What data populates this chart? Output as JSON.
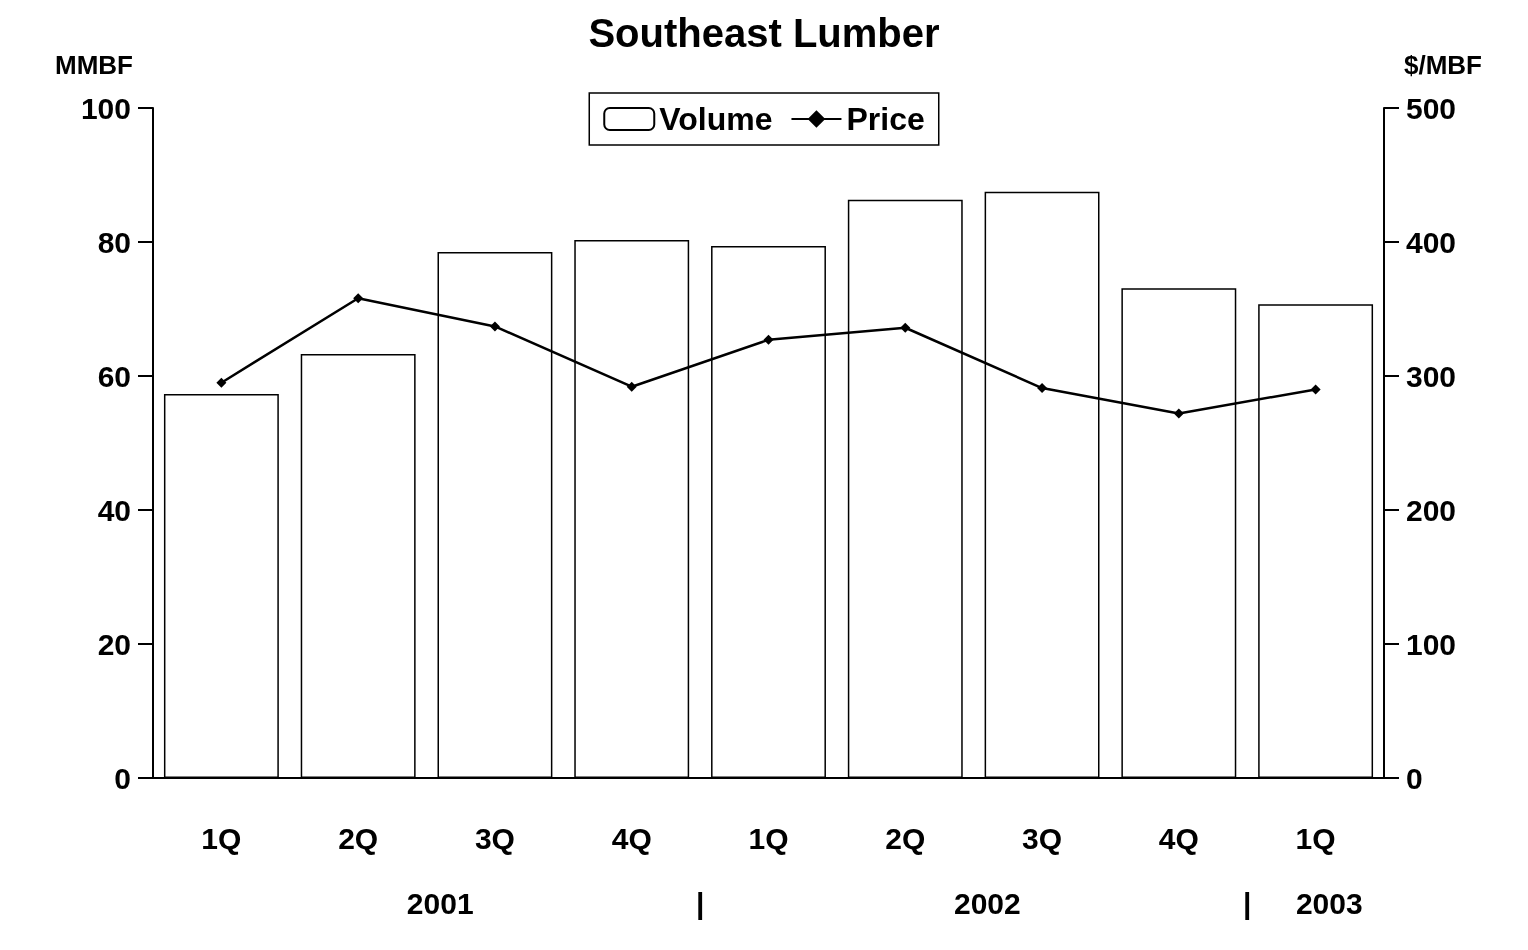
{
  "chart_data": {
    "type": "bar",
    "title": "Southeast Lumber",
    "ylabel": "MMBF",
    "y2label": "$/MBF",
    "categories": [
      "1Q",
      "2Q",
      "3Q",
      "4Q",
      "1Q",
      "2Q",
      "3Q",
      "4Q",
      "1Q"
    ],
    "series": [
      {
        "name": "Volume",
        "color": "#ffffff",
        "values": [
          57.3,
          63.3,
          78.5,
          80.3,
          79.4,
          86.3,
          87.5,
          73.1,
          70.7
        ]
      },
      {
        "name": "Price",
        "type": "line",
        "axis": "y2",
        "color": "#000000",
        "values": [
          295,
          358,
          337,
          292,
          327,
          336,
          291,
          272,
          290
        ]
      }
    ],
    "ylim": [
      0,
      100
    ],
    "yticks": [
      0,
      20,
      40,
      60,
      80,
      100
    ],
    "y2lim": [
      0,
      500
    ],
    "y2ticks": [
      0,
      100,
      200,
      300,
      400,
      500
    ],
    "legend": "top",
    "marker": "diamond",
    "grid": false,
    "annotations": [
      "2001",
      "|",
      "2002",
      "|",
      "2003"
    ]
  }
}
